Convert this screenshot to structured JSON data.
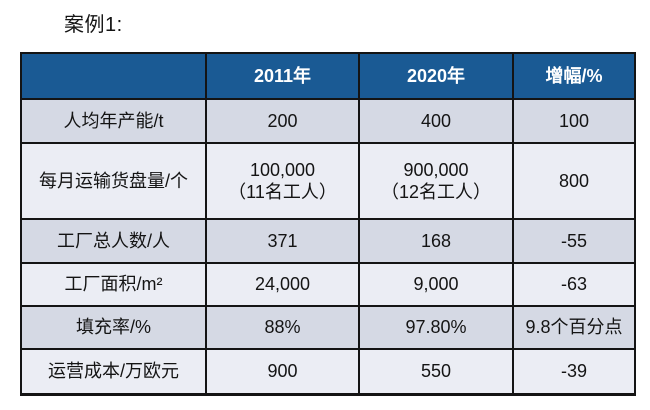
{
  "title": "案例1:",
  "colors": {
    "header_bg": "#1a5a94",
    "row_odd_bg": "#d5d9e4",
    "row_even_bg": "#ebedf4",
    "border": "#141414",
    "header_text": "#ffffff",
    "body_text": "#141414"
  },
  "table": {
    "header": {
      "col0": "",
      "col1": "2011年",
      "col2": "2020年",
      "col3": "增幅/%"
    },
    "rows": [
      {
        "label": "人均年产能/t",
        "y2011": "200",
        "y2020": "400",
        "growth": "100"
      },
      {
        "label": "每月运输货盘量/个",
        "y2011_line1": "100,000",
        "y2011_line2": "（11名工人）",
        "y2020_line1": "900,000",
        "y2020_line2": "（12名工人）",
        "growth": "800"
      },
      {
        "label": "工厂总人数/人",
        "y2011": "371",
        "y2020": "168",
        "growth": "-55"
      },
      {
        "label": "工厂面积/m²",
        "y2011": "24,000",
        "y2020": "9,000",
        "growth": "-63"
      },
      {
        "label": "填充率/%",
        "y2011": "88%",
        "y2020": "97.80%",
        "growth": "9.8个百分点"
      },
      {
        "label": "运营成本/万欧元",
        "y2011": "900",
        "y2020": "550",
        "growth": "-39"
      }
    ]
  }
}
